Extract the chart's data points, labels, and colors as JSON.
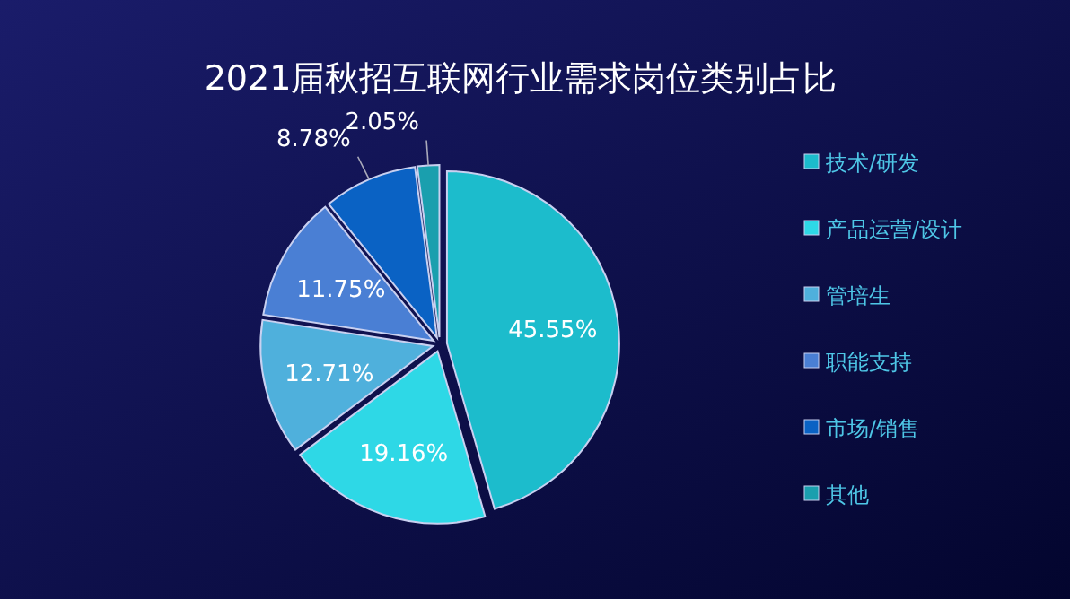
{
  "chart_data": {
    "type": "pie",
    "title": "2021届秋招互联网行业需求岗位类别占比",
    "categories": [
      "技术/研发",
      "产品运营/设计",
      "管培生",
      "职能支持",
      "市场/销售",
      "其他"
    ],
    "values": [
      45.55,
      19.16,
      12.71,
      11.75,
      8.78,
      2.05
    ],
    "colors": [
      "#1cbccc",
      "#2ed8e6",
      "#4fb0dc",
      "#4a7fd4",
      "#0a62c4",
      "#1a9fae"
    ],
    "value_labels": [
      "45.55%",
      "19.16%",
      "12.71%",
      "11.75%",
      "8.78%",
      "2.05%"
    ],
    "legend": "right"
  }
}
